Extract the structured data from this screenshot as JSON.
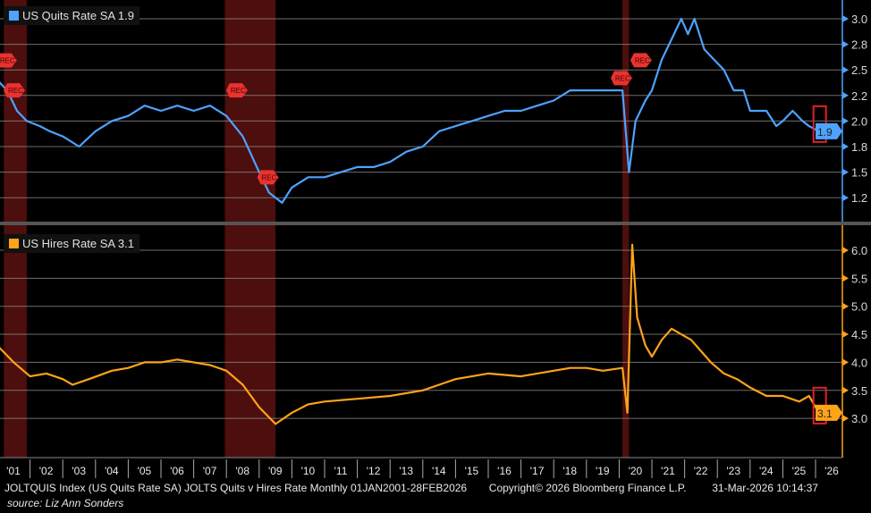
{
  "chart_data": [
    {
      "type": "line",
      "title": "US Quits Rate SA",
      "legend": {
        "label": "US Quits Rate SA 1.9",
        "placement": "top-left"
      },
      "color": "#4da3ff",
      "last_value": "1.9",
      "ylim": [
        1.05,
        3.15
      ],
      "yticks": [
        3.0,
        2.75,
        2.5,
        2.25,
        2.0,
        1.75,
        1.5,
        1.25
      ],
      "ytick_labels": [
        "3.0",
        "2.8",
        "2.5",
        "2.2",
        "2.0",
        "1.8",
        "1.5",
        "1.2"
      ],
      "x": [
        2001.0,
        2001.3,
        2001.6,
        2001.9,
        2002.3,
        2002.6,
        2003.0,
        2003.5,
        2004.0,
        2004.5,
        2005.0,
        2005.5,
        2006.0,
        2006.5,
        2007.0,
        2007.5,
        2008.0,
        2008.5,
        2009.0,
        2009.3,
        2009.7,
        2010.0,
        2010.5,
        2011.0,
        2011.5,
        2012.0,
        2012.5,
        2013.0,
        2013.5,
        2014.0,
        2014.5,
        2015.0,
        2015.5,
        2016.0,
        2016.5,
        2017.0,
        2017.5,
        2018.0,
        2018.5,
        2019.0,
        2019.5,
        2020.1,
        2020.3,
        2020.5,
        2020.8,
        2021.0,
        2021.3,
        2021.6,
        2021.9,
        2022.1,
        2022.3,
        2022.6,
        2022.9,
        2023.2,
        2023.5,
        2023.8,
        2024.0,
        2024.5,
        2024.8,
        2025.0,
        2025.3,
        2025.6,
        2025.8,
        2026.1
      ],
      "y": [
        2.4,
        2.3,
        2.1,
        2.0,
        1.95,
        1.9,
        1.85,
        1.75,
        1.9,
        2.0,
        2.05,
        2.15,
        2.1,
        2.15,
        2.1,
        2.15,
        2.05,
        1.85,
        1.5,
        1.3,
        1.2,
        1.35,
        1.45,
        1.45,
        1.5,
        1.55,
        1.55,
        1.6,
        1.7,
        1.75,
        1.9,
        1.95,
        2.0,
        2.05,
        2.1,
        2.1,
        2.15,
        2.2,
        2.3,
        2.3,
        2.3,
        2.3,
        1.5,
        2.0,
        2.2,
        2.3,
        2.6,
        2.8,
        3.0,
        2.85,
        3.0,
        2.7,
        2.6,
        2.5,
        2.3,
        2.3,
        2.1,
        2.1,
        1.95,
        2.0,
        2.1,
        2.0,
        1.95,
        1.9
      ],
      "rec_markers": [
        "REC",
        "REC",
        "REC",
        "REC",
        "REC",
        "REC"
      ]
    },
    {
      "type": "line",
      "title": "US Hires Rate SA",
      "legend": {
        "label": "US Hires Rate SA 3.1",
        "placement": "top-left"
      },
      "color": "#ffa319",
      "last_value": "3.1",
      "ylim": [
        2.5,
        6.45
      ],
      "yticks": [
        6.0,
        5.5,
        5.0,
        4.5,
        4.0,
        3.5,
        3.0
      ],
      "ytick_labels": [
        "6.0",
        "5.5",
        "5.0",
        "4.5",
        "4.0",
        "3.5",
        "3.0"
      ],
      "x": [
        2001.0,
        2001.5,
        2002.0,
        2002.5,
        2003.0,
        2003.3,
        2003.8,
        2004.5,
        2005.0,
        2005.5,
        2006.0,
        2006.5,
        2007.0,
        2007.5,
        2008.0,
        2008.5,
        2009.0,
        2009.5,
        2010.0,
        2010.5,
        2011.0,
        2012.0,
        2013.0,
        2014.0,
        2014.5,
        2015.0,
        2015.5,
        2016.0,
        2017.0,
        2018.0,
        2018.5,
        2019.0,
        2019.5,
        2020.1,
        2020.25,
        2020.4,
        2020.55,
        2020.8,
        2021.0,
        2021.3,
        2021.6,
        2021.9,
        2022.2,
        2022.5,
        2022.8,
        2023.2,
        2023.6,
        2024.0,
        2024.5,
        2025.0,
        2025.5,
        2025.8,
        2026.0,
        2026.1
      ],
      "y": [
        4.3,
        4.0,
        3.75,
        3.8,
        3.7,
        3.6,
        3.7,
        3.85,
        3.9,
        4.0,
        4.0,
        4.05,
        4.0,
        3.95,
        3.85,
        3.6,
        3.2,
        2.9,
        3.1,
        3.25,
        3.3,
        3.35,
        3.4,
        3.5,
        3.6,
        3.7,
        3.75,
        3.8,
        3.75,
        3.85,
        3.9,
        3.9,
        3.85,
        3.9,
        3.1,
        6.1,
        4.8,
        4.3,
        4.1,
        4.4,
        4.6,
        4.5,
        4.4,
        4.2,
        4.0,
        3.8,
        3.7,
        3.55,
        3.4,
        3.4,
        3.3,
        3.4,
        3.2,
        3.1
      ]
    }
  ],
  "recessions": [
    [
      2001.2,
      2001.9
    ],
    [
      2007.95,
      2009.5
    ],
    [
      2020.1,
      2020.3
    ]
  ],
  "xaxis": {
    "range": [
      2001,
      2026.5
    ],
    "tick_labels": [
      "'01",
      "'02",
      "'03",
      "'04",
      "'05",
      "'06",
      "'07",
      "'08",
      "'09",
      "'10",
      "'11",
      "'12",
      "'13",
      "'14",
      "'15",
      "'16",
      "'17",
      "'18",
      "'19",
      "'20",
      "'21",
      "'22",
      "'23",
      "'24",
      "'25",
      "'26"
    ]
  },
  "footer": {
    "description": "JOLTQUIS Index (US Quits Rate SA) JOLTS Quits v Hires Rate Monthly 01JAN2001-28FEB2026",
    "copyright": "Copyright© 2026 Bloomberg Finance L.P.",
    "timestamp": "31-Mar-2026 10:14:37",
    "source": "source: Liz Ann Sonders"
  }
}
